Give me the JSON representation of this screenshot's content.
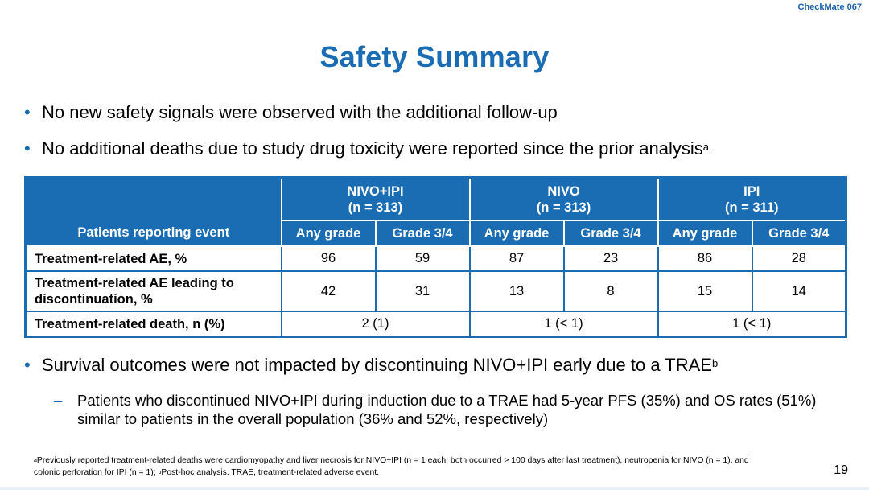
{
  "header_tag": "CheckMate 067",
  "title": "Safety Summary",
  "bullets": [
    {
      "text": "No new safety signals were observed with the additional follow-up",
      "sup": ""
    },
    {
      "text": "No additional deaths due to study drug toxicity were reported since the prior analysis",
      "sup": "a"
    }
  ],
  "table": {
    "row_header": "Patients reporting event",
    "groups": [
      {
        "name": "NIVO+IPI",
        "n": "(n = 313)"
      },
      {
        "name": "NIVO",
        "n": "(n = 313)"
      },
      {
        "name": "IPI",
        "n": "(n = 311)"
      }
    ],
    "sub_headers": [
      "Any grade",
      "Grade 3/4",
      "Any grade",
      "Grade 3/4",
      "Any grade",
      "Grade 3/4"
    ],
    "rows": [
      {
        "label": "Treatment-related AE, %",
        "values": [
          "96",
          "59",
          "87",
          "23",
          "86",
          "28"
        ]
      },
      {
        "label": "Treatment-related AE leading to discontinuation, %",
        "values": [
          "42",
          "31",
          "13",
          "8",
          "15",
          "14"
        ]
      }
    ],
    "death_row": {
      "label": "Treatment-related death, n (%)",
      "values": [
        "2 (1)",
        "1 (< 1)",
        "1 (< 1)"
      ]
    }
  },
  "bullet3": {
    "text": "Survival outcomes were not impacted by discontinuing NIVO+IPI early due to a TRAE",
    "sup": "b"
  },
  "sub_bullet": "Patients who discontinued NIVO+IPI during induction due to a TRAE had 5-year PFS (35%) and OS rates (51%) similar to patients in the overall population (36% and 52%, respectively)",
  "footnote": {
    "a_mark": "a",
    "a_text": "Previously reported treatment-related deaths were cardiomyopathy and liver necrosis for NIVO+IPI (n = 1 each; both occurred > 100 days after last treatment), neutropenia for NIVO (n = 1), and colonic perforation for IPI (n = 1); ",
    "b_mark": "b",
    "b_text": "Post-hoc analysis. TRAE, treatment-related adverse event."
  },
  "page_number": "19"
}
